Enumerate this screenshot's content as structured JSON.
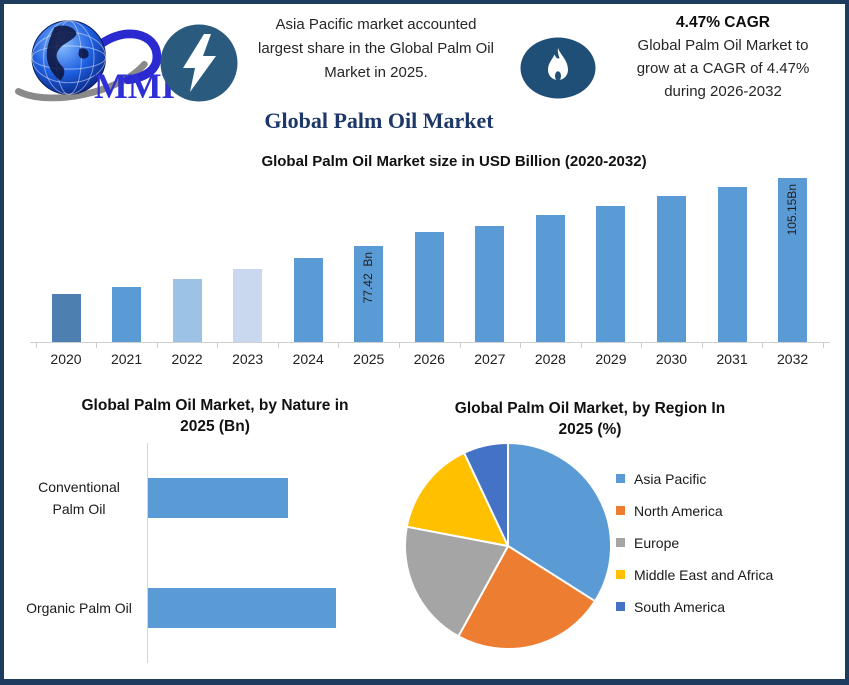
{
  "page_title": "Global Palm Oil Market",
  "colors": {
    "frame_border": "#1e3c5e",
    "badge_flash": "#2a5a7e",
    "badge_flame": "#1f4e77",
    "title_navy": "#1c3768",
    "bar_default": "#5b9bd5",
    "axis_gray": "#cfcfcf"
  },
  "header": {
    "logo_text": "MMR",
    "icons": {
      "left_badge": "lightning-bolt",
      "right_badge": "flame"
    },
    "highlight_left": {
      "lines": [
        "Asia Pacific market accounted",
        "largest share in the Global Palm Oil",
        "Market in 2025."
      ]
    },
    "highlight_right": {
      "title": "4.47% CAGR",
      "lines": [
        "Global Palm Oil Market to",
        "grow at a CAGR of 4.47%",
        "during 2026-2032"
      ]
    }
  },
  "chart_data": [
    {
      "id": "market-size-bar",
      "type": "bar",
      "title": "Global Palm Oil Market size in USD Billion (2020-2032)",
      "categories": [
        "2020",
        "2021",
        "2022",
        "2023",
        "2024",
        "2025",
        "2026",
        "2027",
        "2028",
        "2029",
        "2030",
        "2031",
        "2032"
      ],
      "values": [
        57.6,
        60.5,
        63.7,
        67.8,
        72.3,
        77.42,
        82.9,
        85.4,
        89.9,
        93.6,
        97.7,
        101.3,
        105.15
      ],
      "unit": "USD Billion",
      "ylim": [
        38,
        106
      ],
      "gridlines": false,
      "y_axis_visible": false,
      "data_labels": {
        "2025": "77.42  Bn",
        "2032": "105.15Bn"
      },
      "bar_colors": {
        "default": "#5b9bd5",
        "2020": "#4d80b0",
        "2022": "#9cc2e5",
        "2023": "#c9d8ee"
      }
    },
    {
      "id": "nature-bar",
      "type": "bar",
      "orientation": "horizontal",
      "title": "Global Palm Oil Market, by Nature in 2025 (Bn)",
      "title_lines": [
        "Global Palm Oil Market, by Nature in",
        "2025 (Bn)"
      ],
      "categories": [
        "Conventional Palm Oil",
        "Organic Palm Oil"
      ],
      "category_lines": [
        [
          "Conventional",
          "Palm Oil"
        ],
        [
          "Organic Palm Oil"
        ]
      ],
      "values": [
        33.1,
        44.4
      ],
      "unit": "USD Billion",
      "xlim": [
        0,
        47
      ],
      "bar_color": "#5b9bd5"
    },
    {
      "id": "region-pie",
      "type": "pie",
      "title": "Global Palm Oil Market, by Region In 2025 (%)",
      "title_lines": [
        "Global Palm Oil Market, by Region In",
        "2025 (%)"
      ],
      "labels": [
        "Asia Pacific",
        "North America",
        "Europe",
        "Middle East and Africa",
        "South America"
      ],
      "values": [
        34,
        24,
        20,
        15,
        7
      ],
      "unit": "%",
      "colors": [
        "#5b9bd5",
        "#ed7d31",
        "#a5a5a5",
        "#ffc000",
        "#4472c4"
      ],
      "start_angle": "top",
      "direction": "clockwise",
      "legend_position": "right"
    }
  ]
}
